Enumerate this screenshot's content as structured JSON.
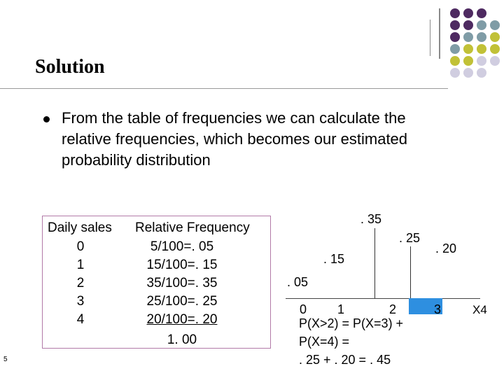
{
  "title": "Solution",
  "bullet_text": "From the table of frequencies we can calculate the relative frequencies, which becomes our estimated probability distribution",
  "table": {
    "headers": [
      "Daily sales",
      "Relative Frequency"
    ],
    "rows": [
      [
        "0",
        "5/100=. 05"
      ],
      [
        "1",
        "15/100=. 15"
      ],
      [
        "2",
        "35/100=. 35"
      ],
      [
        "3",
        "25/100=. 25"
      ],
      [
        "4",
        "20/100=. 20"
      ]
    ],
    "total": "1. 00"
  },
  "diagram": {
    "bar_labels": [
      ". 05",
      ". 15",
      ". 35",
      ". 25",
      ". 20"
    ],
    "axis_labels": [
      "0",
      "1",
      "2",
      "3",
      "X4"
    ]
  },
  "result_lines": [
    "P(X>2) = P(X=3) +",
    "P(X=4) =",
    ". 25 + . 20 = . 45"
  ],
  "slide_number": "5",
  "colors": {
    "dot_purple": "#4e2a61",
    "dot_teal": "#7f9ca6",
    "dot_olive": "#c1c137",
    "dot_lavender": "#d0cde0",
    "box_border": "#b27aa8",
    "bar_fill": "#2e8fe0"
  }
}
